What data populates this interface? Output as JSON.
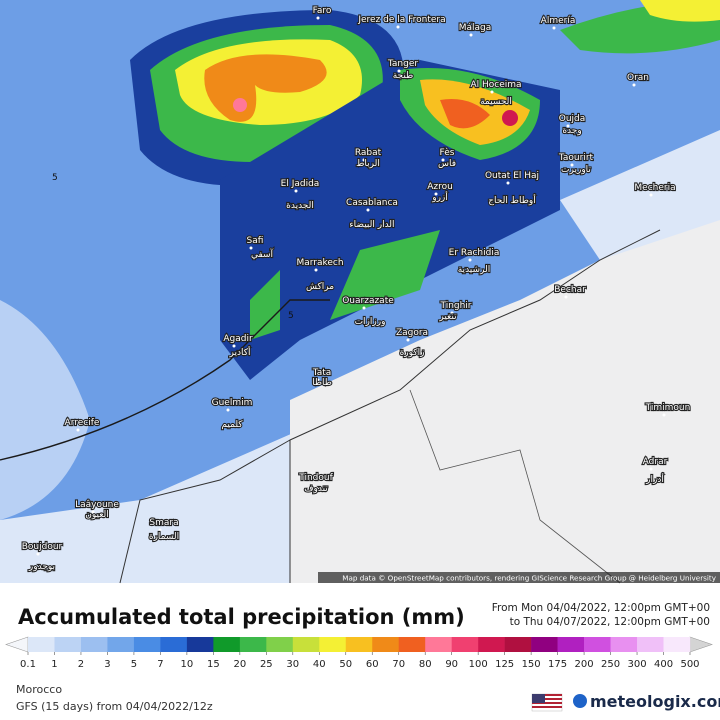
{
  "map": {
    "cities": [
      {
        "name": "Faro"
      },
      {
        "name": "Jerez de la Frontera"
      },
      {
        "name": "Málaga"
      },
      {
        "name": "Almería"
      },
      {
        "name": "Tanger",
        "local": "طنجة"
      },
      {
        "name": "Al Hoceima",
        "local": "الحسيمة"
      },
      {
        "name": "Oran",
        "local": "وهران"
      },
      {
        "name": "Oujda",
        "local": "وجدة"
      },
      {
        "name": "Rabat",
        "local": "الرباط"
      },
      {
        "name": "Fès",
        "local": "فاس"
      },
      {
        "name": "Taourirt",
        "local": "تاوريرت"
      },
      {
        "name": "Outat El Haj",
        "local": "أوطاط الحاج"
      },
      {
        "name": "El Jadida",
        "local": "الجديدة"
      },
      {
        "name": "Azrou",
        "local": "أزرو"
      },
      {
        "name": "Casablanca",
        "local": "الدار البيضاء"
      },
      {
        "name": "Mecheria"
      },
      {
        "name": "Safi",
        "local": "آسفي"
      },
      {
        "name": "Marrakech",
        "local": "مراكش"
      },
      {
        "name": "Er Rachidia",
        "local": "الرشيدية"
      },
      {
        "name": "Bechar",
        "local": "بشار"
      },
      {
        "name": "Ouarzazate",
        "local": "ورزازات"
      },
      {
        "name": "Tinghir",
        "local": "تنغير"
      },
      {
        "name": "Agadir",
        "local": "أكادير"
      },
      {
        "name": "Zagora",
        "local": "زاكورة"
      },
      {
        "name": "Tata",
        "local": "طاطا"
      },
      {
        "name": "Guelmim",
        "local": "كلميم"
      },
      {
        "name": "Timimoun"
      },
      {
        "name": "Arrecife"
      },
      {
        "name": "Tindouf",
        "local": "تندوف"
      },
      {
        "name": "Adrar",
        "local": "أدرار"
      },
      {
        "name": "Laâyoune",
        "local": "العيون"
      },
      {
        "name": "Smara",
        "local": "السمارة"
      },
      {
        "name": "Boujdour",
        "local": "بوجدور"
      }
    ],
    "contour_labels": [
      "5",
      "5"
    ],
    "attribution": "Map data © OpenStreetMap contributors, rendering GIScience Research Group @ Heidelberg University"
  },
  "legend": {
    "title": "Accumulated total precipitation (mm)",
    "period_from": "From Mon 04/04/2022, 12:00pm GMT+00",
    "period_to": "to Thu 04/07/2022, 12:00pm GMT+00",
    "levels": [
      0.1,
      1,
      2,
      3,
      5,
      7,
      10,
      15,
      20,
      25,
      30,
      40,
      50,
      60,
      70,
      80,
      90,
      100,
      125,
      150,
      175,
      200,
      250,
      300,
      400,
      500
    ],
    "colors": [
      "#dce7f8",
      "#bcd3f4",
      "#9cbff0",
      "#72a6ea",
      "#4a8ce4",
      "#2a6cd6",
      "#17399a",
      "#109a2a",
      "#3cb84a",
      "#80d04a",
      "#c8e03a",
      "#f4f034",
      "#f8c020",
      "#f08a18",
      "#f06020",
      "#ff7898",
      "#f04070",
      "#d01850",
      "#b01040",
      "#900080",
      "#b020c0",
      "#d050e0",
      "#e890f0",
      "#f0c0f8",
      "#f8e8fc"
    ],
    "low_color": "#f4f6fa",
    "high_color": "#d4d4d4"
  },
  "footer": {
    "region": "Morocco",
    "model": "GFS (15 days) from  04/04/2022/12z",
    "brand": "meteologix.com"
  }
}
